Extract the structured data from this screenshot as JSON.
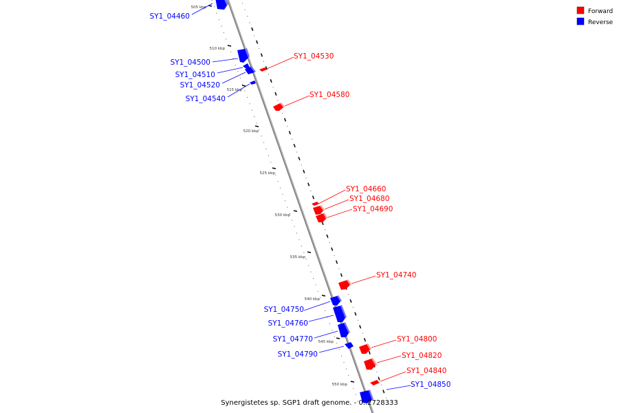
{
  "title": "Synergistetes sp. SGP1 draft genome. - 0..2728333",
  "legend": [
    {
      "label": "Forward",
      "color": "#ff0000"
    },
    {
      "label": "Reverse",
      "color": "#0000ff"
    }
  ],
  "colors": {
    "forward": "#ff0000",
    "reverse": "#0000ff",
    "backbone": "#808080"
  },
  "scale": {
    "start_kbp": 505,
    "end_kbp": 550,
    "labels": [
      "505 kbp",
      "510 kbp",
      "515 kbp",
      "520 kbp",
      "525 kbp",
      "530 kbp",
      "535 kbp",
      "540 kbp",
      "545 kbp",
      "550 kbp"
    ]
  },
  "features": [
    {
      "name": "SY1_04460",
      "strand": "reverse"
    },
    {
      "name": "SY1_04500",
      "strand": "reverse"
    },
    {
      "name": "SY1_04510",
      "strand": "reverse"
    },
    {
      "name": "SY1_04520",
      "strand": "reverse"
    },
    {
      "name": "SY1_04540",
      "strand": "reverse"
    },
    {
      "name": "SY1_04530",
      "strand": "forward"
    },
    {
      "name": "SY1_04580",
      "strand": "forward"
    },
    {
      "name": "SY1_04660",
      "strand": "forward"
    },
    {
      "name": "SY1_04680",
      "strand": "forward"
    },
    {
      "name": "SY1_04690",
      "strand": "forward"
    },
    {
      "name": "SY1_04740",
      "strand": "forward"
    },
    {
      "name": "SY1_04750",
      "strand": "reverse"
    },
    {
      "name": "SY1_04760",
      "strand": "reverse"
    },
    {
      "name": "SY1_04770",
      "strand": "reverse"
    },
    {
      "name": "SY1_04790",
      "strand": "reverse"
    },
    {
      "name": "SY1_04800",
      "strand": "forward"
    },
    {
      "name": "SY1_04820",
      "strand": "forward"
    },
    {
      "name": "SY1_04840",
      "strand": "forward"
    },
    {
      "name": "SY1_04850",
      "strand": "reverse"
    }
  ]
}
